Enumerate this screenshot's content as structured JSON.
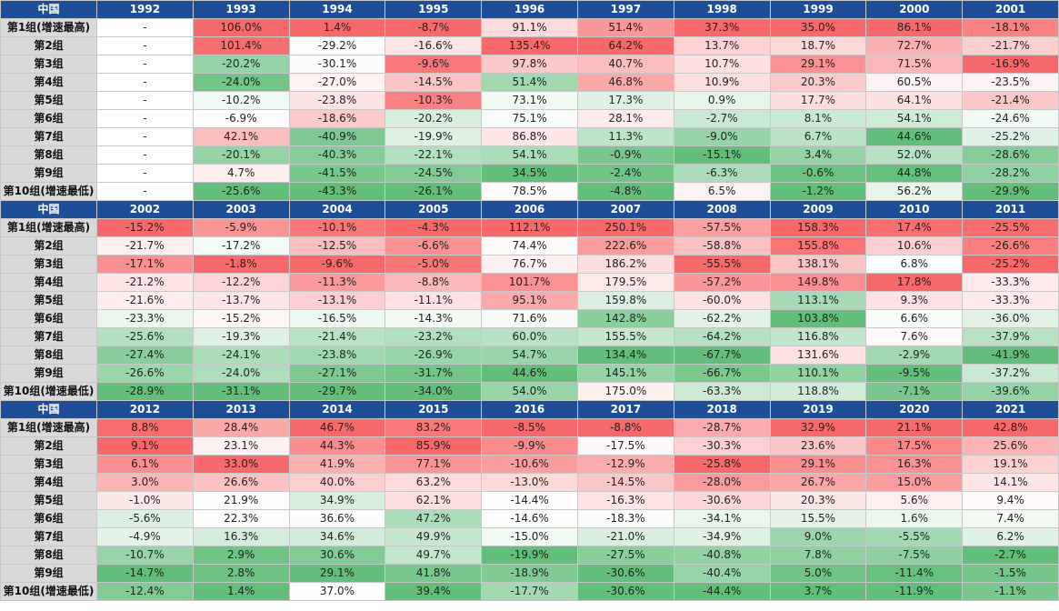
{
  "chart_data": {
    "type": "table",
    "corner_label": "中国",
    "row_labels": [
      "第1组(增速最高)",
      "第2组",
      "第3组",
      "第4组",
      "第5组",
      "第6组",
      "第7组",
      "第8组",
      "第9组",
      "第10组(增速最低)"
    ],
    "colors": {
      "header": "#1f4e99",
      "row_label": "#d9d9d9",
      "high": "#f8696b",
      "mid": "#ffffff",
      "low": "#63be7b"
    },
    "blocks": [
      {
        "years": [
          "1992",
          "1993",
          "1994",
          "1995",
          "1996",
          "1997",
          "1998",
          "1999",
          "2000",
          "2001"
        ],
        "rows": [
          [
            "-",
            "106.0%",
            "1.4%",
            "-8.7%",
            "91.1%",
            "51.4%",
            "37.3%",
            "35.0%",
            "86.1%",
            "-18.1%"
          ],
          [
            "-",
            "101.4%",
            "-29.2%",
            "-16.6%",
            "135.4%",
            "64.2%",
            "13.7%",
            "18.7%",
            "72.7%",
            "-21.7%"
          ],
          [
            "-",
            "-20.2%",
            "-30.1%",
            "-9.6%",
            "97.8%",
            "40.7%",
            "10.7%",
            "29.1%",
            "71.5%",
            "-16.9%"
          ],
          [
            "-",
            "-24.0%",
            "-27.0%",
            "-14.5%",
            "51.4%",
            "46.8%",
            "10.9%",
            "20.3%",
            "60.5%",
            "-23.5%"
          ],
          [
            "-",
            "-10.2%",
            "-23.8%",
            "-10.3%",
            "73.1%",
            "17.3%",
            "0.9%",
            "17.7%",
            "64.1%",
            "-21.4%"
          ],
          [
            "-",
            "-6.9%",
            "-18.6%",
            "-20.2%",
            "75.1%",
            "28.1%",
            "-2.7%",
            "8.1%",
            "54.1%",
            "-24.6%"
          ],
          [
            "-",
            "42.1%",
            "-40.9%",
            "-19.9%",
            "86.8%",
            "11.3%",
            "-9.0%",
            "6.7%",
            "44.6%",
            "-25.2%"
          ],
          [
            "-",
            "-20.1%",
            "-40.3%",
            "-22.1%",
            "54.1%",
            "-0.9%",
            "-15.1%",
            "3.4%",
            "52.0%",
            "-28.6%"
          ],
          [
            "-",
            "4.7%",
            "-41.5%",
            "-24.5%",
            "34.5%",
            "-2.4%",
            "-6.3%",
            "-0.6%",
            "44.8%",
            "-28.2%"
          ],
          [
            "-",
            "-25.6%",
            "-43.3%",
            "-26.1%",
            "78.5%",
            "-4.8%",
            "6.5%",
            "-1.2%",
            "56.2%",
            "-29.9%"
          ]
        ]
      },
      {
        "years": [
          "2002",
          "2003",
          "2004",
          "2005",
          "2006",
          "2007",
          "2008",
          "2009",
          "2010",
          "2011"
        ],
        "rows": [
          [
            "-15.2%",
            "-5.9%",
            "-10.1%",
            "-4.3%",
            "112.1%",
            "250.1%",
            "-57.5%",
            "158.3%",
            "17.4%",
            "-25.5%"
          ],
          [
            "-21.7%",
            "-17.2%",
            "-12.5%",
            "-6.6%",
            "74.4%",
            "222.6%",
            "-58.8%",
            "155.8%",
            "10.6%",
            "-26.6%"
          ],
          [
            "-17.1%",
            "-1.8%",
            "-9.6%",
            "-5.0%",
            "76.7%",
            "186.2%",
            "-55.5%",
            "138.1%",
            "6.8%",
            "-25.2%"
          ],
          [
            "-21.2%",
            "-12.2%",
            "-11.3%",
            "-8.8%",
            "101.7%",
            "179.5%",
            "-57.2%",
            "149.8%",
            "17.8%",
            "-33.3%"
          ],
          [
            "-21.6%",
            "-13.7%",
            "-13.1%",
            "-11.1%",
            "95.1%",
            "159.8%",
            "-60.0%",
            "113.1%",
            "9.3%",
            "-33.3%"
          ],
          [
            "-23.3%",
            "-15.2%",
            "-16.5%",
            "-14.3%",
            "71.6%",
            "142.8%",
            "-62.2%",
            "103.8%",
            "6.6%",
            "-36.0%"
          ],
          [
            "-25.6%",
            "-19.3%",
            "-21.4%",
            "-23.2%",
            "60.0%",
            "155.5%",
            "-64.2%",
            "116.8%",
            "7.6%",
            "-37.9%"
          ],
          [
            "-27.4%",
            "-24.1%",
            "-23.8%",
            "-26.9%",
            "54.7%",
            "134.4%",
            "-67.7%",
            "131.6%",
            "-2.9%",
            "-41.9%"
          ],
          [
            "-26.6%",
            "-24.0%",
            "-27.1%",
            "-31.7%",
            "44.6%",
            "145.1%",
            "-66.7%",
            "110.1%",
            "-9.5%",
            "-37.2%"
          ],
          [
            "-28.9%",
            "-31.1%",
            "-29.7%",
            "-34.0%",
            "54.0%",
            "175.0%",
            "-63.3%",
            "118.8%",
            "-7.1%",
            "-39.6%"
          ]
        ]
      },
      {
        "years": [
          "2012",
          "2013",
          "2014",
          "2015",
          "2016",
          "2017",
          "2018",
          "2019",
          "2020",
          "2021"
        ],
        "rows": [
          [
            "8.8%",
            "28.4%",
            "46.7%",
            "83.2%",
            "-8.5%",
            "-8.8%",
            "-28.7%",
            "32.9%",
            "21.1%",
            "42.8%"
          ],
          [
            "9.1%",
            "23.1%",
            "44.3%",
            "85.9%",
            "-9.9%",
            "-17.5%",
            "-30.3%",
            "23.6%",
            "17.5%",
            "25.6%"
          ],
          [
            "6.1%",
            "33.0%",
            "41.9%",
            "77.1%",
            "-10.6%",
            "-12.9%",
            "-25.8%",
            "29.1%",
            "16.3%",
            "19.1%"
          ],
          [
            "3.0%",
            "26.6%",
            "40.0%",
            "63.2%",
            "-13.0%",
            "-14.5%",
            "-28.0%",
            "26.7%",
            "15.0%",
            "14.1%"
          ],
          [
            "-1.0%",
            "21.9%",
            "34.9%",
            "62.1%",
            "-14.4%",
            "-16.3%",
            "-30.6%",
            "20.3%",
            "5.6%",
            "9.4%"
          ],
          [
            "-5.6%",
            "22.3%",
            "36.6%",
            "47.2%",
            "-14.6%",
            "-18.3%",
            "-34.1%",
            "15.5%",
            "1.6%",
            "7.4%"
          ],
          [
            "-4.9%",
            "16.3%",
            "34.6%",
            "49.9%",
            "-15.0%",
            "-21.0%",
            "-34.9%",
            "9.0%",
            "-5.5%",
            "6.2%"
          ],
          [
            "-10.7%",
            "2.9%",
            "30.6%",
            "49.7%",
            "-19.9%",
            "-27.5%",
            "-40.8%",
            "7.8%",
            "-7.5%",
            "-2.7%"
          ],
          [
            "-14.7%",
            "2.8%",
            "29.1%",
            "41.8%",
            "-18.9%",
            "-30.6%",
            "-40.4%",
            "5.0%",
            "-11.4%",
            "-1.5%"
          ],
          [
            "-12.4%",
            "1.4%",
            "37.0%",
            "39.4%",
            "-17.7%",
            "-30.6%",
            "-44.4%",
            "3.7%",
            "-11.9%",
            "-1.1%"
          ]
        ]
      }
    ]
  }
}
